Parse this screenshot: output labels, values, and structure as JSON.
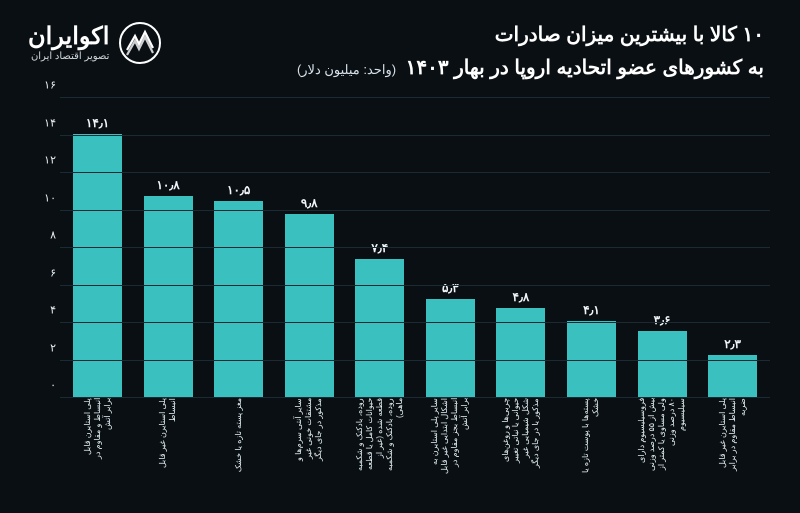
{
  "header": {
    "title_line1": "۱۰ کالا با بیشترین میزان صادرات",
    "title_line2": "به کشورهای عضو اتحادیه اروپا در بهار ۱۴۰۳",
    "unit": "(واحد: میلیون دلار)",
    "logo_name": "اکوایران",
    "logo_tagline": "تصویر اقتصاد ایران"
  },
  "chart": {
    "type": "bar",
    "direction": "rtl",
    "background_color": "#0a0f14",
    "grid_color": "#1b2b33",
    "bar_color": "#3ac1bf",
    "text_color": "#e4f0f4",
    "title_fontsize": 20,
    "label_fontsize": 12,
    "xlabel_fontsize": 8,
    "ytick_fontsize": 11,
    "bar_width": 0.78,
    "ylim": [
      0,
      16
    ],
    "yticks": [
      0,
      2,
      4,
      6,
      8,
      10,
      12,
      14,
      16
    ],
    "ytick_labels": [
      "۰",
      "۲",
      "۴",
      "۶",
      "۸",
      "۱۰",
      "۱۲",
      "۱۴",
      "۱۶"
    ],
    "categories": [
      "پلی استایرن قابل انبساط و مقاوم در برابر آتش",
      "پلی استایرن غیر قابل انبساط",
      "مغز پسته تازه یا خشک",
      "سایر آنتی سرم‌ها و مشتقات خونی غیر مذکور در جای دیگر",
      "روده، بادکنک و شکمبه حیوانات کامل یا قطعه قطعه شده (غیر از روده، بادکنک و شکمبه ماهی)",
      "سایر پلی استایرن به اشکال ابتدایی غیر قابل انبساط بجز مقاوم در برابر آتش",
      "چربی‌ها و روغن‌های حیوانی یا نباتی تغییر شکل شیمیایی غیر مذکور یا در جای دیگر",
      "پسته‌ها با پوست تازه یا خشک",
      "فروسیلیسیوم دارای بیش از ۵۵ درصد وزنی ولی مساوی یا کمتر از ۸۰ درصد وزنی سیلیسیوم",
      "پلی استایرن غیر قابل انبساط مقاوم در برابر ضربه"
    ],
    "values": [
      14.1,
      10.8,
      10.5,
      9.8,
      7.4,
      5.3,
      4.8,
      4.1,
      3.6,
      2.3
    ],
    "value_labels": [
      "۱۴٫۱",
      "۱۰٫۸",
      "۱۰٫۵",
      "۹٫۸",
      "۷٫۴",
      "۵٫۳",
      "۴٫۸",
      "۴٫۱",
      "۳٫۶",
      "۲٫۳"
    ]
  }
}
